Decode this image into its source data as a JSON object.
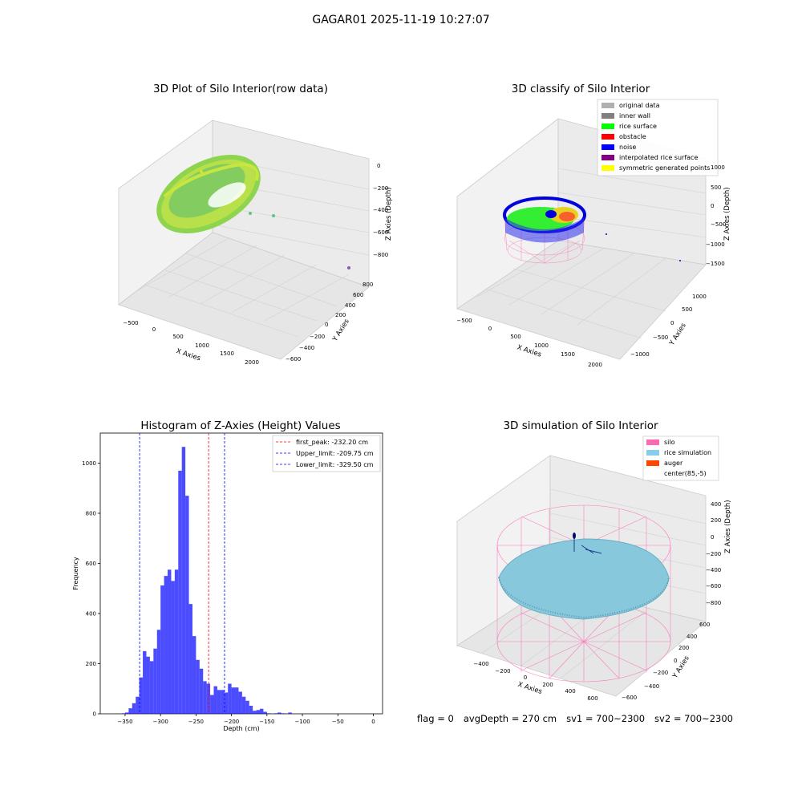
{
  "figure": {
    "suptitle": "GAGAR01 2025-11-19 10:27:07"
  },
  "panels": {
    "raw": {
      "title": "3D Plot of Silo Interior(row data)",
      "xlabel": "X Axies",
      "ylabel": "Y Axies",
      "zlabel": "Z Axies (Depth)",
      "xticks": [
        "−500",
        "0",
        "500",
        "1000",
        "1500",
        "2000"
      ],
      "yticks": [
        "−600",
        "−400",
        "−200",
        "0",
        "200",
        "400",
        "600",
        "800"
      ],
      "zticks": [
        "0",
        "−200",
        "−400",
        "−600",
        "−800"
      ]
    },
    "classify": {
      "title": "3D classify of Silo Interior",
      "xlabel": "X Axies",
      "ylabel": "Y Axies",
      "zlabel": "Z Axies (Depth)",
      "xticks": [
        "−500",
        "0",
        "500",
        "1000",
        "1500",
        "2000"
      ],
      "yticks": [
        "−1000",
        "−500",
        "0",
        "500",
        "1000"
      ],
      "zticks": [
        "1000",
        "500",
        "0",
        "−500",
        "−1000",
        "−1500"
      ],
      "legend": [
        {
          "label": "original data",
          "color": "#b0b0b0"
        },
        {
          "label": "inner wall",
          "color": "#808080"
        },
        {
          "label": "rice surface",
          "color": "#00ff00"
        },
        {
          "label": "obstacle",
          "color": "#ff0000"
        },
        {
          "label": "noise",
          "color": "#0000ff"
        },
        {
          "label": "interpolated rice surface",
          "color": "#800080"
        },
        {
          "label": "symmetric generated points",
          "color": "#ffff00"
        }
      ]
    },
    "simulation": {
      "title": "3D simulation of Silo Interior",
      "xlabel": "X Axies",
      "ylabel": "Y Axies",
      "zlabel": "Z Axies (Depth)",
      "xticks": [
        "−400",
        "−200",
        "0",
        "200",
        "400",
        "600"
      ],
      "yticks": [
        "−600",
        "−400",
        "−200",
        "0",
        "200",
        "400",
        "600"
      ],
      "zticks": [
        "400",
        "200",
        "0",
        "−200",
        "−400",
        "−600",
        "−800"
      ],
      "legend": [
        {
          "label": "silo",
          "color": "#ff69b4"
        },
        {
          "label": "rice simulation",
          "color": "#87ceeb"
        },
        {
          "label": "auger",
          "color": "#ff4500"
        },
        {
          "label": "center(85,-5)",
          "color": ""
        }
      ]
    }
  },
  "status": {
    "flag": "flag = 0",
    "avg_depth": "avgDepth = 270 cm",
    "sv1": "sv1 = 700~2300",
    "sv2": "sv2 = 700~2300"
  },
  "chart_data": [
    {
      "type": "histogram",
      "title": "Histogram of Z-Axies (Height) Values",
      "xlabel": "Depth (cm)",
      "ylabel": "Frequency",
      "xlim": [
        -385,
        13
      ],
      "ylim": [
        0,
        1120
      ],
      "xticks": [
        -350,
        -300,
        -250,
        -200,
        -150,
        -100,
        -50,
        0
      ],
      "yticks": [
        0,
        200,
        400,
        600,
        800,
        1000
      ],
      "bar_color": "#0000ff",
      "bin_edges": [
        -355,
        -350,
        -345,
        -340,
        -335,
        -330,
        -325,
        -320,
        -315,
        -310,
        -305,
        -300,
        -295,
        -290,
        -285,
        -280,
        -275,
        -270,
        -265,
        -260,
        -255,
        -250,
        -245,
        -240,
        -235,
        -230,
        -225,
        -220,
        -215,
        -210,
        -205,
        -200,
        -195,
        -190,
        -185,
        -180,
        -175,
        -170,
        -165,
        -160,
        -155,
        -150,
        -145,
        -140,
        -135,
        -130,
        -125,
        -120,
        -115,
        -110,
        -105,
        -100,
        -95,
        -90,
        -85,
        -80,
        -75,
        -70,
        -65,
        -60,
        -55,
        -50,
        -45,
        -40,
        -35,
        -30,
        -25,
        -20,
        -15,
        -10,
        -5,
        0,
        5
      ],
      "counts": [
        2,
        5,
        22,
        42,
        68,
        145,
        250,
        228,
        210,
        260,
        335,
        512,
        550,
        575,
        530,
        575,
        970,
        1065,
        870,
        438,
        310,
        215,
        180,
        130,
        120,
        75,
        110,
        95,
        95,
        85,
        120,
        105,
        105,
        88,
        68,
        52,
        32,
        12,
        15,
        20,
        8,
        2,
        0,
        2,
        5,
        2,
        0,
        5,
        0,
        0,
        0,
        0,
        0,
        0,
        0,
        0,
        0,
        0,
        0,
        0,
        0,
        0,
        0,
        0,
        0,
        0,
        0,
        0,
        0,
        0,
        0,
        0
      ],
      "vlines": [
        {
          "label": "first_peak: -232.20 cm",
          "x": -232.2,
          "color": "#ff0000"
        },
        {
          "label": "Upper_limit: -209.75 cm",
          "x": -209.75,
          "color": "#0000ff"
        },
        {
          "label": "Lower_limit: -329.50 cm",
          "x": -329.5,
          "color": "#0000ff"
        }
      ],
      "legend_position": "upper right"
    }
  ]
}
